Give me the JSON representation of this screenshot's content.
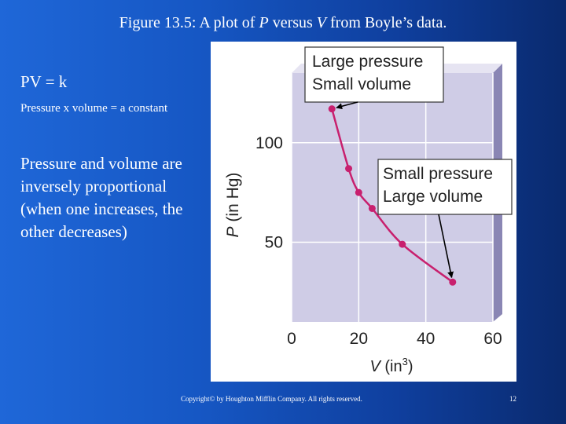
{
  "slide": {
    "title_prefix": "Figure 13.5:  A plot of ",
    "title_p": "P",
    "title_mid": " versus ",
    "title_v": "V",
    "title_suffix": " from Boyle’s data.",
    "equation": "PV = k",
    "equation_desc": "Pressure x volume = a constant",
    "inverse_text": "Pressure and volume are inversely proportional (when one increases, the other decreases)",
    "copyright": "Copyright© by Houghton Mifflin Company.  All rights reserved.",
    "page_number": "12"
  },
  "colors": {
    "background": "#1657c4",
    "plot_area": "#cfcce6",
    "plot_side": "#8a86b4",
    "curve": "#c8206e",
    "grid": "#ffffff"
  },
  "chart_data": {
    "type": "line",
    "x": [
      12,
      17,
      20,
      24,
      33,
      48
    ],
    "y": [
      117,
      87,
      75,
      67,
      49,
      30
    ],
    "xlim": [
      0,
      60
    ],
    "ylim": [
      10,
      135
    ],
    "xticks": [
      "0",
      "20",
      "40",
      "60"
    ],
    "xtick_values": [
      0,
      20,
      40,
      60
    ],
    "yticks": [
      "50",
      "100"
    ],
    "ytick_values": [
      50,
      100
    ],
    "xlabel_var": "V",
    "xlabel_unit": " (in",
    "xlabel_exp": "3",
    "xlabel_close": ")",
    "ylabel_var": "P",
    "ylabel_unit": " (in Hg)",
    "grid": true,
    "annotations": [
      {
        "line1": "Large pressure",
        "line2": "Small volume",
        "point_index": 0
      },
      {
        "line1": "Small pressure",
        "line2": "Large volume",
        "point_index": 5
      }
    ]
  }
}
